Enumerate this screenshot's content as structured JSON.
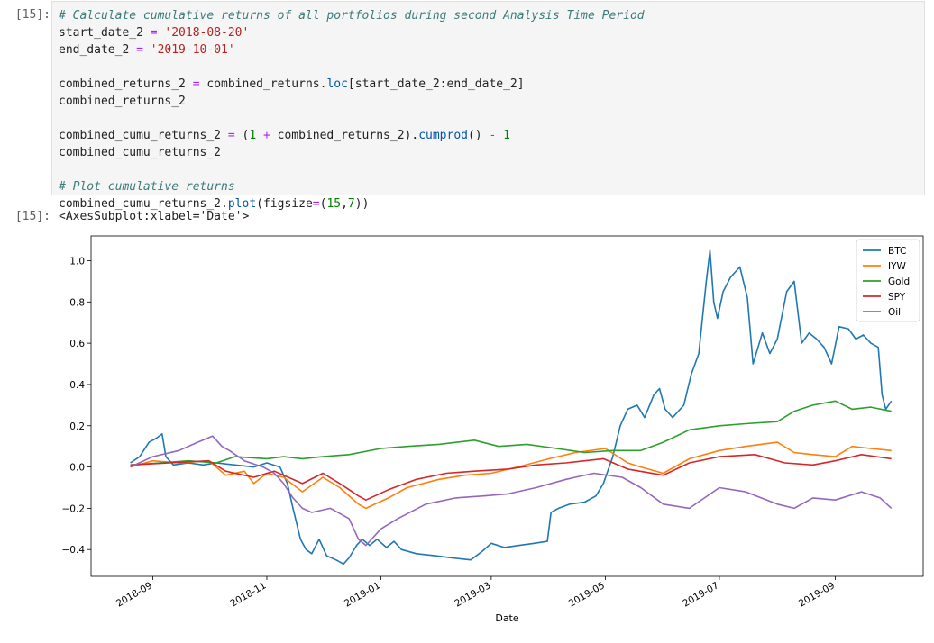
{
  "cell": {
    "in_prompt": "[15]:",
    "out_prompt": "[15]:",
    "output_text": "<AxesSubplot:xlabel='Date'>",
    "code": [
      [
        {
          "t": "# Calculate cumulative returns of all portfolios during second Analysis Time Period",
          "c": "cm"
        }
      ],
      [
        {
          "t": "start_date_2 "
        },
        {
          "t": "=",
          "c": "op"
        },
        {
          "t": " "
        },
        {
          "t": "'2018-08-20'",
          "c": "st"
        }
      ],
      [
        {
          "t": "end_date_2 "
        },
        {
          "t": "=",
          "c": "op"
        },
        {
          "t": " "
        },
        {
          "t": "'2019-10-01'",
          "c": "st"
        }
      ],
      [],
      [
        {
          "t": "combined_returns_2 "
        },
        {
          "t": "=",
          "c": "op"
        },
        {
          "t": " combined_returns."
        },
        {
          "t": "loc",
          "c": "fn"
        },
        {
          "t": "[start_date_2:end_date_2]"
        }
      ],
      [
        {
          "t": "combined_returns_2"
        }
      ],
      [],
      [
        {
          "t": "combined_cumu_returns_2 "
        },
        {
          "t": "=",
          "c": "op"
        },
        {
          "t": " ("
        },
        {
          "t": "1",
          "c": "nu"
        },
        {
          "t": " "
        },
        {
          "t": "+",
          "c": "op"
        },
        {
          "t": " combined_returns_2)."
        },
        {
          "t": "cumprod",
          "c": "fn"
        },
        {
          "t": "() "
        },
        {
          "t": "-",
          "c": "op"
        },
        {
          "t": " "
        },
        {
          "t": "1",
          "c": "nu"
        }
      ],
      [
        {
          "t": "combined_cumu_returns_2"
        }
      ],
      [],
      [
        {
          "t": "# Plot cumulative returns",
          "c": "cm"
        }
      ],
      [
        {
          "t": "combined_cumu_returns_2."
        },
        {
          "t": "plot",
          "c": "fn"
        },
        {
          "t": "(figsize"
        },
        {
          "t": "=",
          "c": "op"
        },
        {
          "t": "("
        },
        {
          "t": "15",
          "c": "nu"
        },
        {
          "t": ","
        },
        {
          "t": "7",
          "c": "nu"
        },
        {
          "t": "))"
        }
      ]
    ]
  },
  "chart_data": {
    "type": "line",
    "xlabel": "Date",
    "ylabel": "",
    "x_range": [
      "2018-07-30",
      "2019-10-18"
    ],
    "ylim": [
      -0.53,
      1.12
    ],
    "x_ticks": [
      "2018-09",
      "2018-11",
      "2019-01",
      "2019-03",
      "2019-05",
      "2019-07",
      "2019-09"
    ],
    "y_ticks": [
      "1.0",
      "0.8",
      "0.6",
      "0.4",
      "0.2",
      "0.0",
      "−0.2",
      "−0.4"
    ],
    "y_tick_values": [
      1.0,
      0.8,
      0.6,
      0.4,
      0.2,
      0.0,
      -0.2,
      -0.4
    ],
    "legend_position": "top-right",
    "grid": false,
    "series": [
      {
        "name": "BTC",
        "color": "#1f77b4",
        "points": [
          [
            "2018-08-20",
            0.02
          ],
          [
            "2018-08-25",
            0.05
          ],
          [
            "2018-08-30",
            0.12
          ],
          [
            "2018-09-03",
            0.14
          ],
          [
            "2018-09-06",
            0.16
          ],
          [
            "2018-09-08",
            0.05
          ],
          [
            "2018-09-12",
            0.01
          ],
          [
            "2018-09-20",
            0.02
          ],
          [
            "2018-09-28",
            0.01
          ],
          [
            "2018-10-05",
            0.02
          ],
          [
            "2018-10-15",
            0.01
          ],
          [
            "2018-10-25",
            0.0
          ],
          [
            "2018-11-01",
            0.02
          ],
          [
            "2018-11-08",
            0.0
          ],
          [
            "2018-11-12",
            -0.08
          ],
          [
            "2018-11-15",
            -0.2
          ],
          [
            "2018-11-19",
            -0.35
          ],
          [
            "2018-11-22",
            -0.4
          ],
          [
            "2018-11-25",
            -0.42
          ],
          [
            "2018-11-29",
            -0.35
          ],
          [
            "2018-12-03",
            -0.43
          ],
          [
            "2018-12-08",
            -0.45
          ],
          [
            "2018-12-12",
            -0.47
          ],
          [
            "2018-12-15",
            -0.44
          ],
          [
            "2018-12-19",
            -0.38
          ],
          [
            "2018-12-22",
            -0.35
          ],
          [
            "2018-12-26",
            -0.38
          ],
          [
            "2018-12-30",
            -0.35
          ],
          [
            "2019-01-04",
            -0.39
          ],
          [
            "2019-01-08",
            -0.36
          ],
          [
            "2019-01-12",
            -0.4
          ],
          [
            "2019-01-20",
            -0.42
          ],
          [
            "2019-01-30",
            -0.43
          ],
          [
            "2019-02-08",
            -0.44
          ],
          [
            "2019-02-18",
            -0.45
          ],
          [
            "2019-02-24",
            -0.41
          ],
          [
            "2019-03-01",
            -0.37
          ],
          [
            "2019-03-08",
            -0.39
          ],
          [
            "2019-03-16",
            -0.38
          ],
          [
            "2019-03-24",
            -0.37
          ],
          [
            "2019-03-31",
            -0.36
          ],
          [
            "2019-04-02",
            -0.22
          ],
          [
            "2019-04-06",
            -0.2
          ],
          [
            "2019-04-12",
            -0.18
          ],
          [
            "2019-04-20",
            -0.17
          ],
          [
            "2019-04-26",
            -0.14
          ],
          [
            "2019-04-30",
            -0.08
          ],
          [
            "2019-05-05",
            0.05
          ],
          [
            "2019-05-09",
            0.2
          ],
          [
            "2019-05-13",
            0.28
          ],
          [
            "2019-05-18",
            0.3
          ],
          [
            "2019-05-22",
            0.24
          ],
          [
            "2019-05-27",
            0.35
          ],
          [
            "2019-05-30",
            0.38
          ],
          [
            "2019-06-02",
            0.28
          ],
          [
            "2019-06-06",
            0.24
          ],
          [
            "2019-06-12",
            0.3
          ],
          [
            "2019-06-16",
            0.45
          ],
          [
            "2019-06-20",
            0.55
          ],
          [
            "2019-06-24",
            0.9
          ],
          [
            "2019-06-26",
            1.05
          ],
          [
            "2019-06-28",
            0.8
          ],
          [
            "2019-06-30",
            0.72
          ],
          [
            "2019-07-03",
            0.85
          ],
          [
            "2019-07-07",
            0.92
          ],
          [
            "2019-07-12",
            0.97
          ],
          [
            "2019-07-16",
            0.82
          ],
          [
            "2019-07-19",
            0.5
          ],
          [
            "2019-07-24",
            0.65
          ],
          [
            "2019-07-28",
            0.55
          ],
          [
            "2019-08-01",
            0.62
          ],
          [
            "2019-08-06",
            0.85
          ],
          [
            "2019-08-10",
            0.9
          ],
          [
            "2019-08-14",
            0.6
          ],
          [
            "2019-08-18",
            0.65
          ],
          [
            "2019-08-22",
            0.62
          ],
          [
            "2019-08-26",
            0.58
          ],
          [
            "2019-08-30",
            0.5
          ],
          [
            "2019-09-03",
            0.68
          ],
          [
            "2019-09-08",
            0.67
          ],
          [
            "2019-09-12",
            0.62
          ],
          [
            "2019-09-16",
            0.64
          ],
          [
            "2019-09-20",
            0.6
          ],
          [
            "2019-09-24",
            0.58
          ],
          [
            "2019-09-26",
            0.35
          ],
          [
            "2019-09-28",
            0.28
          ],
          [
            "2019-10-01",
            0.32
          ]
        ]
      },
      {
        "name": "IYW",
        "color": "#ff7f0e",
        "points": [
          [
            "2018-08-20",
            0.0
          ],
          [
            "2018-09-01",
            0.03
          ],
          [
            "2018-09-15",
            0.02
          ],
          [
            "2018-10-01",
            0.03
          ],
          [
            "2018-10-10",
            -0.04
          ],
          [
            "2018-10-20",
            -0.02
          ],
          [
            "2018-10-25",
            -0.08
          ],
          [
            "2018-11-01",
            -0.03
          ],
          [
            "2018-11-10",
            -0.05
          ],
          [
            "2018-11-20",
            -0.12
          ],
          [
            "2018-12-01",
            -0.05
          ],
          [
            "2018-12-10",
            -0.1
          ],
          [
            "2018-12-20",
            -0.18
          ],
          [
            "2018-12-24",
            -0.2
          ],
          [
            "2019-01-05",
            -0.15
          ],
          [
            "2019-01-15",
            -0.1
          ],
          [
            "2019-02-01",
            -0.06
          ],
          [
            "2019-02-15",
            -0.04
          ],
          [
            "2019-03-01",
            -0.03
          ],
          [
            "2019-03-15",
            0.0
          ],
          [
            "2019-04-01",
            0.04
          ],
          [
            "2019-04-15",
            0.07
          ],
          [
            "2019-05-01",
            0.09
          ],
          [
            "2019-05-13",
            0.02
          ],
          [
            "2019-05-20",
            0.0
          ],
          [
            "2019-06-01",
            -0.03
          ],
          [
            "2019-06-15",
            0.04
          ],
          [
            "2019-07-01",
            0.08
          ],
          [
            "2019-07-15",
            0.1
          ],
          [
            "2019-08-01",
            0.12
          ],
          [
            "2019-08-10",
            0.07
          ],
          [
            "2019-08-20",
            0.06
          ],
          [
            "2019-09-01",
            0.05
          ],
          [
            "2019-09-10",
            0.1
          ],
          [
            "2019-09-20",
            0.09
          ],
          [
            "2019-10-01",
            0.08
          ]
        ]
      },
      {
        "name": "Gold",
        "color": "#2ca02c",
        "points": [
          [
            "2018-08-20",
            0.01
          ],
          [
            "2018-09-05",
            0.02
          ],
          [
            "2018-09-20",
            0.03
          ],
          [
            "2018-10-05",
            0.02
          ],
          [
            "2018-10-15",
            0.05
          ],
          [
            "2018-11-01",
            0.04
          ],
          [
            "2018-11-10",
            0.05
          ],
          [
            "2018-11-20",
            0.04
          ],
          [
            "2018-12-01",
            0.05
          ],
          [
            "2018-12-15",
            0.06
          ],
          [
            "2019-01-01",
            0.09
          ],
          [
            "2019-01-15",
            0.1
          ],
          [
            "2019-02-01",
            0.11
          ],
          [
            "2019-02-20",
            0.13
          ],
          [
            "2019-03-05",
            0.1
          ],
          [
            "2019-03-20",
            0.11
          ],
          [
            "2019-04-05",
            0.09
          ],
          [
            "2019-04-20",
            0.07
          ],
          [
            "2019-05-05",
            0.08
          ],
          [
            "2019-05-20",
            0.08
          ],
          [
            "2019-06-01",
            0.12
          ],
          [
            "2019-06-15",
            0.18
          ],
          [
            "2019-07-01",
            0.2
          ],
          [
            "2019-07-15",
            0.21
          ],
          [
            "2019-08-01",
            0.22
          ],
          [
            "2019-08-10",
            0.27
          ],
          [
            "2019-08-20",
            0.3
          ],
          [
            "2019-09-01",
            0.32
          ],
          [
            "2019-09-10",
            0.28
          ],
          [
            "2019-09-20",
            0.29
          ],
          [
            "2019-10-01",
            0.27
          ]
        ]
      },
      {
        "name": "SPY",
        "color": "#d62728",
        "points": [
          [
            "2018-08-20",
            0.01
          ],
          [
            "2018-09-10",
            0.02
          ],
          [
            "2018-10-01",
            0.03
          ],
          [
            "2018-10-10",
            -0.02
          ],
          [
            "2018-10-25",
            -0.05
          ],
          [
            "2018-11-05",
            -0.02
          ],
          [
            "2018-11-20",
            -0.08
          ],
          [
            "2018-12-01",
            -0.03
          ],
          [
            "2018-12-10",
            -0.08
          ],
          [
            "2018-12-20",
            -0.14
          ],
          [
            "2018-12-24",
            -0.16
          ],
          [
            "2019-01-05",
            -0.11
          ],
          [
            "2019-01-20",
            -0.06
          ],
          [
            "2019-02-05",
            -0.03
          ],
          [
            "2019-02-20",
            -0.02
          ],
          [
            "2019-03-10",
            -0.01
          ],
          [
            "2019-03-25",
            0.01
          ],
          [
            "2019-04-10",
            0.02
          ],
          [
            "2019-04-30",
            0.04
          ],
          [
            "2019-05-13",
            -0.01
          ],
          [
            "2019-06-01",
            -0.04
          ],
          [
            "2019-06-15",
            0.02
          ],
          [
            "2019-07-01",
            0.05
          ],
          [
            "2019-07-20",
            0.06
          ],
          [
            "2019-08-05",
            0.02
          ],
          [
            "2019-08-20",
            0.01
          ],
          [
            "2019-09-01",
            0.03
          ],
          [
            "2019-09-15",
            0.06
          ],
          [
            "2019-10-01",
            0.04
          ]
        ]
      },
      {
        "name": "Oil",
        "color": "#9467bd",
        "points": [
          [
            "2018-08-20",
            0.0
          ],
          [
            "2018-09-01",
            0.05
          ],
          [
            "2018-09-15",
            0.08
          ],
          [
            "2018-09-25",
            0.12
          ],
          [
            "2018-10-03",
            0.15
          ],
          [
            "2018-10-08",
            0.1
          ],
          [
            "2018-10-12",
            0.08
          ],
          [
            "2018-10-20",
            0.03
          ],
          [
            "2018-10-30",
            0.0
          ],
          [
            "2018-11-05",
            -0.03
          ],
          [
            "2018-11-10",
            -0.08
          ],
          [
            "2018-11-15",
            -0.15
          ],
          [
            "2018-11-20",
            -0.2
          ],
          [
            "2018-11-25",
            -0.22
          ],
          [
            "2018-12-05",
            -0.2
          ],
          [
            "2018-12-15",
            -0.25
          ],
          [
            "2018-12-20",
            -0.35
          ],
          [
            "2018-12-24",
            -0.38
          ],
          [
            "2019-01-01",
            -0.3
          ],
          [
            "2019-01-10",
            -0.25
          ],
          [
            "2019-01-25",
            -0.18
          ],
          [
            "2019-02-10",
            -0.15
          ],
          [
            "2019-02-25",
            -0.14
          ],
          [
            "2019-03-10",
            -0.13
          ],
          [
            "2019-03-25",
            -0.1
          ],
          [
            "2019-04-10",
            -0.06
          ],
          [
            "2019-04-25",
            -0.03
          ],
          [
            "2019-05-10",
            -0.05
          ],
          [
            "2019-05-20",
            -0.1
          ],
          [
            "2019-06-01",
            -0.18
          ],
          [
            "2019-06-15",
            -0.2
          ],
          [
            "2019-07-01",
            -0.1
          ],
          [
            "2019-07-15",
            -0.12
          ],
          [
            "2019-08-01",
            -0.18
          ],
          [
            "2019-08-10",
            -0.2
          ],
          [
            "2019-08-20",
            -0.15
          ],
          [
            "2019-09-01",
            -0.16
          ],
          [
            "2019-09-15",
            -0.12
          ],
          [
            "2019-09-25",
            -0.15
          ],
          [
            "2019-10-01",
            -0.2
          ]
        ]
      }
    ]
  }
}
